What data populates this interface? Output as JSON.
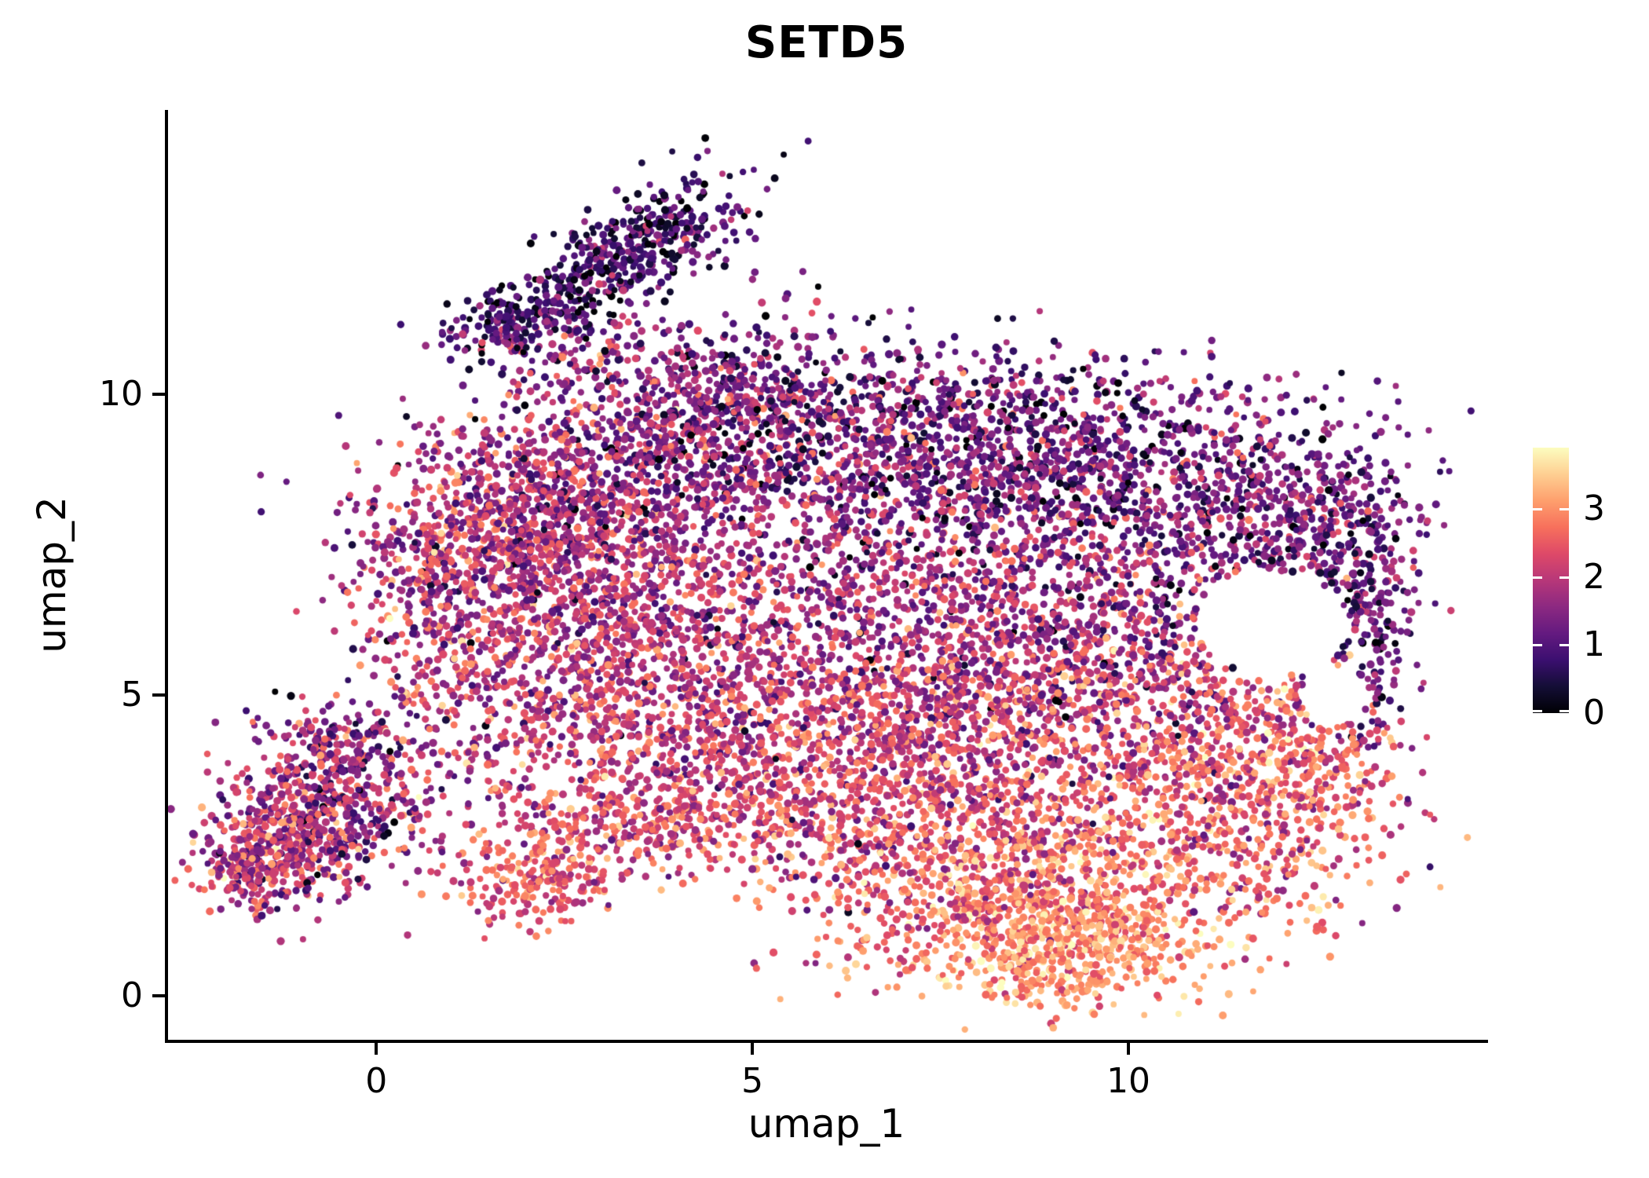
{
  "chart_data": {
    "type": "scatter",
    "title": "SETD5",
    "xlabel": "umap_1",
    "ylabel": "umap_2",
    "xlim": [
      -2.79,
      14.76
    ],
    "ylim": [
      -0.74,
      14.73
    ],
    "xticks": [
      0,
      5,
      10
    ],
    "yticks": [
      0,
      5,
      10
    ],
    "grid": false,
    "legend_position": "right",
    "colorbar": {
      "vmin": 0,
      "vmax": 3.9,
      "tick_values": [
        3,
        2,
        1,
        0
      ],
      "colormap": "magma",
      "stops": [
        {
          "t": 0.0,
          "color": "#000004"
        },
        {
          "t": 0.1,
          "color": "#140E36"
        },
        {
          "t": 0.2,
          "color": "#3B0F70"
        },
        {
          "t": 0.3,
          "color": "#641A80"
        },
        {
          "t": 0.4,
          "color": "#8C2981"
        },
        {
          "t": 0.5,
          "color": "#B73779"
        },
        {
          "t": 0.6,
          "color": "#DE4968"
        },
        {
          "t": 0.7,
          "color": "#F7705C"
        },
        {
          "t": 0.8,
          "color": "#FE9F6D"
        },
        {
          "t": 0.9,
          "color": "#FECF92"
        },
        {
          "t": 1.0,
          "color": "#FCFDBF"
        }
      ]
    },
    "style": {
      "point_radius": 4.5,
      "axis_color": "#000000",
      "text_color": "#000000",
      "background": "#FFFFFF"
    },
    "sampling": {
      "seed": 20240,
      "holes": [
        {
          "cx": 11.9,
          "cy": 6.2,
          "rx": 1.0,
          "ry": 0.85
        },
        {
          "cx": 12.75,
          "cy": 5.0,
          "rx": 0.45,
          "ry": 0.5
        }
      ],
      "clusters": [
        {
          "name": "beak-main",
          "center": [
            3.4,
            12.4
          ],
          "sd": [
            0.85,
            0.38
          ],
          "rot": 40,
          "count": 430,
          "expr": [
            0.85,
            0.6
          ]
        },
        {
          "name": "beak-arm",
          "center": [
            1.8,
            11.2
          ],
          "sd": [
            0.55,
            0.25
          ],
          "rot": 20,
          "count": 170,
          "expr": [
            0.95,
            0.6
          ]
        },
        {
          "name": "beak-base",
          "center": [
            3.0,
            10.6
          ],
          "sd": [
            0.75,
            0.45
          ],
          "rot": 0,
          "count": 150,
          "expr": [
            1.4,
            0.75
          ]
        },
        {
          "name": "neck",
          "center": [
            4.7,
            10.0
          ],
          "sd": [
            0.75,
            0.55
          ],
          "rot": 0,
          "count": 220,
          "expr": [
            1.5,
            0.75
          ]
        },
        {
          "name": "neck-outlier",
          "center": [
            5.6,
            11.1
          ],
          "sd": [
            0.5,
            0.5
          ],
          "rot": 0,
          "count": 35,
          "expr": [
            1.3,
            0.8
          ]
        },
        {
          "name": "left-blob-a",
          "center": [
            -1.25,
            2.7
          ],
          "sd": [
            0.6,
            0.6
          ],
          "rot": 0,
          "count": 400,
          "expr": [
            1.85,
            0.7
          ]
        },
        {
          "name": "left-blob-b",
          "center": [
            -0.45,
            3.4
          ],
          "sd": [
            0.6,
            0.65
          ],
          "rot": 0,
          "count": 330,
          "expr": [
            1.7,
            0.75
          ]
        },
        {
          "name": "left-blob-c",
          "center": [
            -1.6,
            2.1
          ],
          "sd": [
            0.4,
            0.35
          ],
          "rot": 0,
          "count": 140,
          "expr": [
            2.0,
            0.6
          ]
        },
        {
          "name": "left-blob-top",
          "center": [
            -0.6,
            4.3
          ],
          "sd": [
            0.5,
            0.3
          ],
          "rot": 0,
          "count": 80,
          "expr": [
            1.3,
            0.7
          ]
        },
        {
          "name": "shoulder-left",
          "center": [
            1.8,
            7.6
          ],
          "sd": [
            1.0,
            1.0
          ],
          "rot": 0,
          "count": 780,
          "expr": [
            1.9,
            0.65
          ]
        },
        {
          "name": "top-left-ridge",
          "center": [
            3.4,
            8.9
          ],
          "sd": [
            1.1,
            0.7
          ],
          "rot": 0,
          "count": 560,
          "expr": [
            1.6,
            0.7
          ]
        },
        {
          "name": "top-mid",
          "center": [
            6.2,
            9.2
          ],
          "sd": [
            1.5,
            0.75
          ],
          "rot": 0,
          "count": 680,
          "expr": [
            1.35,
            0.7
          ]
        },
        {
          "name": "top-right",
          "center": [
            9.3,
            8.8
          ],
          "sd": [
            1.7,
            0.85
          ],
          "rot": 0,
          "count": 880,
          "expr": [
            1.2,
            0.65
          ]
        },
        {
          "name": "right-lobe",
          "center": [
            12.2,
            7.9
          ],
          "sd": [
            0.9,
            0.75
          ],
          "rot": 0,
          "count": 460,
          "expr": [
            1.25,
            0.6
          ]
        },
        {
          "name": "right-edge-arc",
          "center": [
            13.15,
            6.3
          ],
          "sd": [
            0.3,
            1.1
          ],
          "rot": 0,
          "count": 230,
          "expr": [
            1.1,
            0.6
          ]
        },
        {
          "name": "mid-left",
          "center": [
            3.0,
            6.2
          ],
          "sd": [
            1.2,
            1.1
          ],
          "rot": 0,
          "count": 880,
          "expr": [
            2.0,
            0.6
          ]
        },
        {
          "name": "center-body",
          "center": [
            6.6,
            6.6
          ],
          "sd": [
            1.7,
            1.3
          ],
          "rot": 0,
          "count": 1050,
          "expr": [
            1.75,
            0.65
          ]
        },
        {
          "name": "mid-right",
          "center": [
            9.7,
            6.2
          ],
          "sd": [
            1.4,
            1.2
          ],
          "rot": 0,
          "count": 720,
          "expr": [
            1.55,
            0.7
          ]
        },
        {
          "name": "lower-band",
          "center": [
            5.3,
            4.4
          ],
          "sd": [
            1.9,
            0.9
          ],
          "rot": 0,
          "count": 720,
          "expr": [
            2.1,
            0.6
          ]
        },
        {
          "name": "bottom-left-arm",
          "center": [
            3.3,
            2.9
          ],
          "sd": [
            1.2,
            0.55
          ],
          "rot": 20,
          "count": 360,
          "expr": [
            2.3,
            0.6
          ]
        },
        {
          "name": "arm-tip",
          "center": [
            2.2,
            1.9
          ],
          "sd": [
            0.5,
            0.35
          ],
          "rot": 0,
          "count": 140,
          "expr": [
            2.6,
            0.5
          ]
        },
        {
          "name": "bottom-mid",
          "center": [
            6.8,
            2.6
          ],
          "sd": [
            1.3,
            0.8
          ],
          "rot": 0,
          "count": 470,
          "expr": [
            2.25,
            0.6
          ]
        },
        {
          "name": "bottom-right",
          "center": [
            9.0,
            1.7
          ],
          "sd": [
            1.5,
            0.85
          ],
          "rot": 0,
          "count": 880,
          "expr": [
            2.8,
            0.5
          ]
        },
        {
          "name": "bottom-core",
          "center": [
            9.1,
            0.8
          ],
          "sd": [
            0.85,
            0.45
          ],
          "rot": 0,
          "count": 400,
          "expr": [
            3.1,
            0.4
          ]
        },
        {
          "name": "right-bottom",
          "center": [
            11.4,
            3.2
          ],
          "sd": [
            1.1,
            1.0
          ],
          "rot": 0,
          "count": 500,
          "expr": [
            2.5,
            0.6
          ]
        },
        {
          "name": "right-mid",
          "center": [
            11.2,
            4.8
          ],
          "sd": [
            0.9,
            0.8
          ],
          "rot": 0,
          "count": 270,
          "expr": [
            2.3,
            0.65
          ]
        },
        {
          "name": "far-right-edge",
          "center": [
            12.6,
            3.8
          ],
          "sd": [
            0.5,
            0.8
          ],
          "rot": 0,
          "count": 160,
          "expr": [
            2.6,
            0.6
          ]
        },
        {
          "name": "mid-band",
          "center": [
            8.2,
            4.6
          ],
          "sd": [
            1.3,
            0.9
          ],
          "rot": 0,
          "count": 560,
          "expr": [
            2.3,
            0.6
          ]
        },
        {
          "name": "sparse-bridge",
          "center": [
            6.3,
            3.4
          ],
          "sd": [
            2.3,
            0.6
          ],
          "rot": 0,
          "count": 230,
          "expr": [
            2.15,
            0.6
          ]
        },
        {
          "name": "left-gap-scatter",
          "center": [
            1.7,
            4.6
          ],
          "sd": [
            0.9,
            0.8
          ],
          "rot": 0,
          "count": 210,
          "expr": [
            2.0,
            0.7
          ]
        },
        {
          "name": "left-edge-body",
          "center": [
            0.6,
            6.7
          ],
          "sd": [
            0.5,
            0.9
          ],
          "rot": 0,
          "count": 160,
          "expr": [
            1.8,
            0.7
          ]
        },
        {
          "name": "top-outliers",
          "center": [
            8.0,
            10.2
          ],
          "sd": [
            1.5,
            0.4
          ],
          "rot": 0,
          "count": 90,
          "expr": [
            1.2,
            0.7
          ]
        }
      ]
    }
  }
}
